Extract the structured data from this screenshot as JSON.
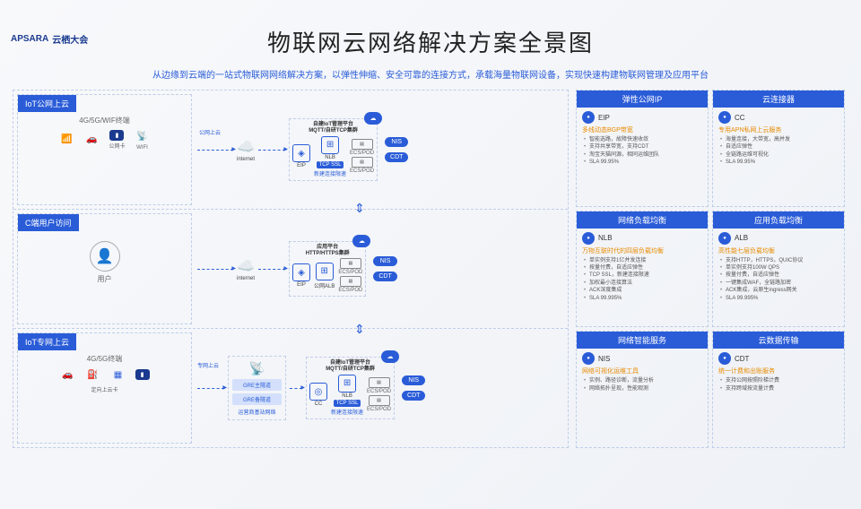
{
  "logo": {
    "brand": "APSARA",
    "event": "云栖大会"
  },
  "title": "物联网云网络解决方案全景图",
  "subtitle": "从边缘到云端的一站式物联网网络解决方案，以弹性伸缩、安全可靠的连接方式，承载海量物联网设备，实现快速构建物联网管理及应用平台",
  "colors": {
    "primary": "#2a5cd8",
    "accent": "#e88b00",
    "border": "#c0cde8",
    "text": "#333333",
    "bg_start": "#f8f9fb",
    "bg_end": "#eef1f6"
  },
  "left": {
    "row1": {
      "header": "IoT公网上云",
      "terminal": "4G/5G/WIF终端",
      "icons": [
        {
          "glyph": "📶",
          "cap": ""
        },
        {
          "glyph": "🚗",
          "cap": ""
        },
        {
          "glyph": "■",
          "cap": "公网卡"
        },
        {
          "glyph": "📡",
          "cap": "WIFI"
        }
      ],
      "link_label": "公网上云",
      "internet": "internet",
      "plat_title": "自建IoT管理平台",
      "plat_sub": "MQTT/自研TCP集群",
      "nodes": [
        "EIP",
        "NLB"
      ],
      "tcp": "TCP SSL",
      "tcp_sub": "新建连接限速",
      "srv": "ECS/POD",
      "pills": [
        "NIS",
        "CDT"
      ]
    },
    "row2": {
      "header": "C端用户访问",
      "user_label": "用户",
      "internet": "internet",
      "plat_title": "应用平台",
      "plat_sub": "HTTP/HTTPS集群",
      "nodes": [
        "EIP",
        "公网ALB"
      ],
      "srv": "ECS/POD",
      "pills": [
        "NIS",
        "CDT"
      ]
    },
    "row3": {
      "header": "IoT专网上云",
      "terminal": "4G/5G终端",
      "icons": [
        {
          "glyph": "🚗",
          "cap": ""
        },
        {
          "glyph": "⛽",
          "cap": ""
        },
        {
          "glyph": "▦",
          "cap": ""
        },
        {
          "glyph": "■",
          "cap": "定向上云卡"
        }
      ],
      "link_label": "专网上云",
      "gre_main": "GRE主隧道",
      "gre_backup": "GRE备隧道",
      "carrier": "运营商基站网络",
      "plat_title": "自建IoT管理平台",
      "plat_sub": "MQTT/自研TCP集群",
      "nodes": [
        "CC",
        "NLB"
      ],
      "tcp": "TCP SSL",
      "tcp_sub": "新建连接限速",
      "srv": "ECS/POD",
      "pills": [
        "NIS",
        "CDT"
      ]
    }
  },
  "right": [
    {
      "header": "弹性公网IP",
      "prod": "EIP",
      "feature": "多线动态BGP带宽",
      "items": [
        "智能选路，故障快速收敛",
        "支持共享带宽，支持CDT",
        "淘宝天猫同源，相同运维团队",
        "SLA 99.95%"
      ]
    },
    {
      "header": "云连接器",
      "prod": "CC",
      "feature": "专用APN私网上云服务",
      "items": [
        "海量连接，大带宽，高并发",
        "自适应弹性",
        "全链路运维可视化",
        "SLA 99.95%"
      ]
    },
    {
      "header": "网络负载均衡",
      "prod": "NLB",
      "feature": "万物互联时代的四层负载均衡",
      "items": [
        "单实例支持1亿并发连接",
        "按量付费，自适应弹性",
        "TCP SSL，新建连接限速",
        "加权最小连接算法",
        "ACK深度集成",
        "SLA 99.995%"
      ]
    },
    {
      "header": "应用负载均衡",
      "prod": "ALB",
      "feature": "高性能七层负载均衡",
      "items": [
        "支持HTTP，HTTPS，QUIC协议",
        "单实例支持100W QPS",
        "按量付费，自适应弹性",
        "一键集成WAF，全链路加密",
        "ACK集成，云原生ingress网关",
        "SLA 99.995%"
      ]
    },
    {
      "header": "网络智能服务",
      "prod": "NIS",
      "feature": "网络可视化运维工具",
      "items": [
        "实例、路径诊断，流量分析",
        "网络拓扑呈现，性能观测"
      ]
    },
    {
      "header": "云数据传输",
      "prod": "CDT",
      "feature": "统一计费和出账服务",
      "items": [
        "支持公网按照阶梯计费",
        "支持跨域按流量计费"
      ]
    }
  ]
}
